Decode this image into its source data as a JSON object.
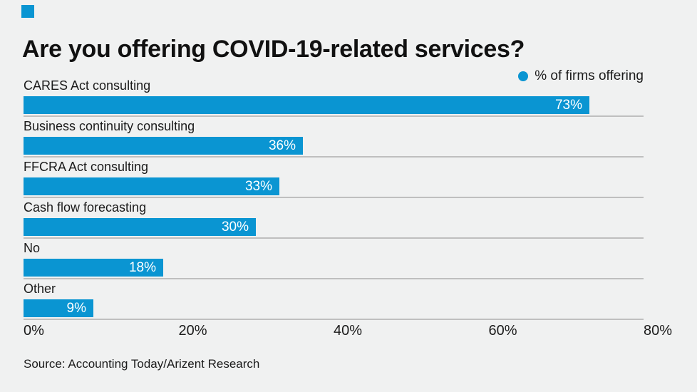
{
  "app": {
    "background": "#f0f1f1",
    "accent": "#0a95d2",
    "text_color": "#1b1b1b",
    "grid_color": "#bfbfbf"
  },
  "header": {
    "title": "Are you offering COVID-19-related services?"
  },
  "legend": {
    "label": "% of firms offering"
  },
  "footer": {
    "source": "Source: Accounting Today/Arizent Research"
  },
  "chart_data": {
    "type": "bar",
    "orientation": "horizontal",
    "title": "Are you offering COVID-19-related services?",
    "categories": [
      "CARES Act consulting",
      "Business continuity consulting",
      "FFCRA Act consulting",
      "Cash flow forecasting",
      "No",
      "Other"
    ],
    "series": [
      {
        "name": "% of firms offering",
        "values": [
          73,
          36,
          33,
          30,
          18,
          9
        ]
      }
    ],
    "value_labels": [
      "73%",
      "36%",
      "33%",
      "30%",
      "18%",
      "9%"
    ],
    "x_ticks": [
      {
        "label": "0%",
        "value": 0
      },
      {
        "label": "20%",
        "value": 20
      },
      {
        "label": "40%",
        "value": 40
      },
      {
        "label": "60%",
        "value": 60
      },
      {
        "label": "80%",
        "value": 80
      }
    ],
    "xlim": [
      0,
      80
    ],
    "xlabel": "",
    "ylabel": "",
    "grid": "horizontal separator line under each bar",
    "legend_position": "top-right",
    "bar_color": "#0a95d2",
    "inside_label_color": "#ffffff"
  }
}
